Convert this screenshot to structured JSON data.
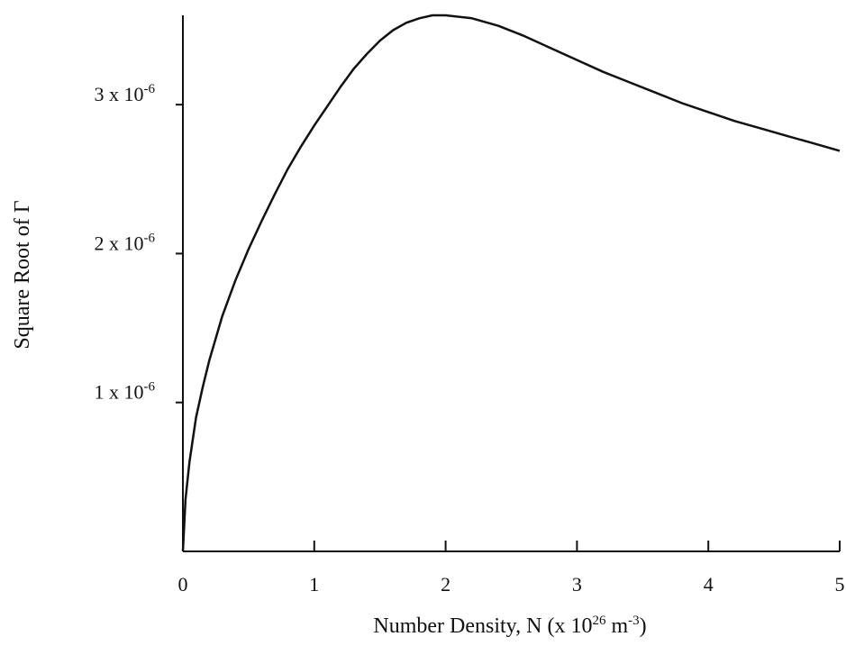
{
  "chart_data": {
    "type": "line",
    "title": "",
    "xlabel": {
      "prefix": "Number Density, N (x 10",
      "exp1": "26",
      "mid": " m",
      "exp2": "-3",
      "suffix": ")"
    },
    "ylabel": "Square Root of Γ",
    "xlim": [
      0,
      5
    ],
    "ylim": [
      0,
      3.6e-06
    ],
    "x_ticks": [
      {
        "value": 0,
        "label": "0"
      },
      {
        "value": 1,
        "label": "1"
      },
      {
        "value": 2,
        "label": "2"
      },
      {
        "value": 3,
        "label": "3"
      },
      {
        "value": 4,
        "label": "4"
      },
      {
        "value": 5,
        "label": "5"
      }
    ],
    "y_ticks": [
      {
        "value": 1e-06,
        "mantissa": "1 x 10",
        "exponent": "-6"
      },
      {
        "value": 2e-06,
        "mantissa": "2 x 10",
        "exponent": "-6"
      },
      {
        "value": 3e-06,
        "mantissa": "3 x 10",
        "exponent": "-6"
      }
    ],
    "grid": false,
    "line_color": "#111111",
    "series": [
      {
        "x": [
          0,
          0.02,
          0.05,
          0.1,
          0.15,
          0.2,
          0.3,
          0.4,
          0.5,
          0.6,
          0.7,
          0.8,
          0.9,
          1.0,
          1.1,
          1.2,
          1.3,
          1.4,
          1.5,
          1.6,
          1.7,
          1.8,
          1.9,
          2.0,
          2.2,
          2.4,
          2.6,
          2.8,
          3.0,
          3.2,
          3.4,
          3.6,
          3.8,
          4.0,
          4.2,
          4.4,
          4.6,
          4.8,
          5.0
        ],
        "y": [
          0,
          3.5e-07,
          6e-07,
          9e-07,
          1.1e-06,
          1.28e-06,
          1.58e-06,
          1.82e-06,
          2.03e-06,
          2.22e-06,
          2.4e-06,
          2.57e-06,
          2.72e-06,
          2.86e-06,
          2.99e-06,
          3.12e-06,
          3.24e-06,
          3.34e-06,
          3.43e-06,
          3.5e-06,
          3.55e-06,
          3.58e-06,
          3.6e-06,
          3.6e-06,
          3.58e-06,
          3.53e-06,
          3.46e-06,
          3.38e-06,
          3.3e-06,
          3.22e-06,
          3.15e-06,
          3.08e-06,
          3.01e-06,
          2.95e-06,
          2.89e-06,
          2.84e-06,
          2.79e-06,
          2.74e-06,
          2.69e-06
        ]
      }
    ]
  }
}
